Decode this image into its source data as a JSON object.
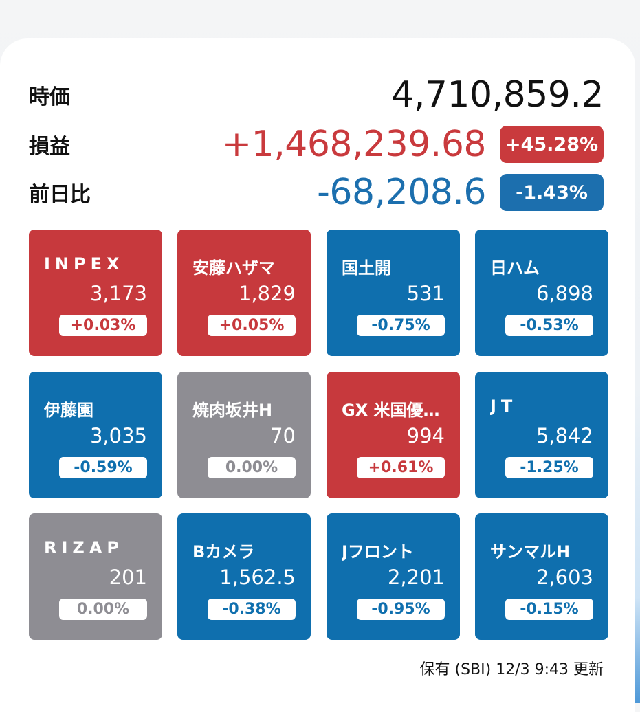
{
  "summary": {
    "market_value": {
      "label": "時価",
      "value": "4,710,859.2"
    },
    "profit_loss": {
      "label": "損益",
      "value": "+1,468,239.68",
      "percent": "+45.28%"
    },
    "day_change": {
      "label": "前日比",
      "value": "-68,208.6",
      "percent": "-1.43%"
    }
  },
  "holdings": [
    {
      "name": "INPEX",
      "price": "3,173",
      "change": "+0.03%",
      "trend": "up"
    },
    {
      "name": "安藤ハザマ",
      "price": "1,829",
      "change": "+0.05%",
      "trend": "up"
    },
    {
      "name": "国土開",
      "price": "531",
      "change": "-0.75%",
      "trend": "down"
    },
    {
      "name": "日ハム",
      "price": "6,898",
      "change": "-0.53%",
      "trend": "down"
    },
    {
      "name": "伊藤園",
      "price": "3,035",
      "change": "-0.59%",
      "trend": "down"
    },
    {
      "name": "焼肉坂井H",
      "price": "70",
      "change": "0.00%",
      "trend": "flat"
    },
    {
      "name": "GX 米国優…",
      "price": "994",
      "change": "+0.61%",
      "trend": "up"
    },
    {
      "name": "JT",
      "price": "5,842",
      "change": "-1.25%",
      "trend": "down"
    },
    {
      "name": "RIZAP",
      "price": "201",
      "change": "0.00%",
      "trend": "flat"
    },
    {
      "name": "Bカメラ",
      "price": "1,562.5",
      "change": "-0.38%",
      "trend": "down"
    },
    {
      "name": "Jフロント",
      "price": "2,201",
      "change": "-0.95%",
      "trend": "down"
    },
    {
      "name": "サンマルH",
      "price": "2,603",
      "change": "-0.15%",
      "trend": "down"
    }
  ],
  "footer": {
    "text": "保有 (SBI) 12/3 9:43 更新"
  },
  "colors": {
    "up": "#c7393d",
    "down": "#0f6fae",
    "flat": "#8e8d93"
  }
}
